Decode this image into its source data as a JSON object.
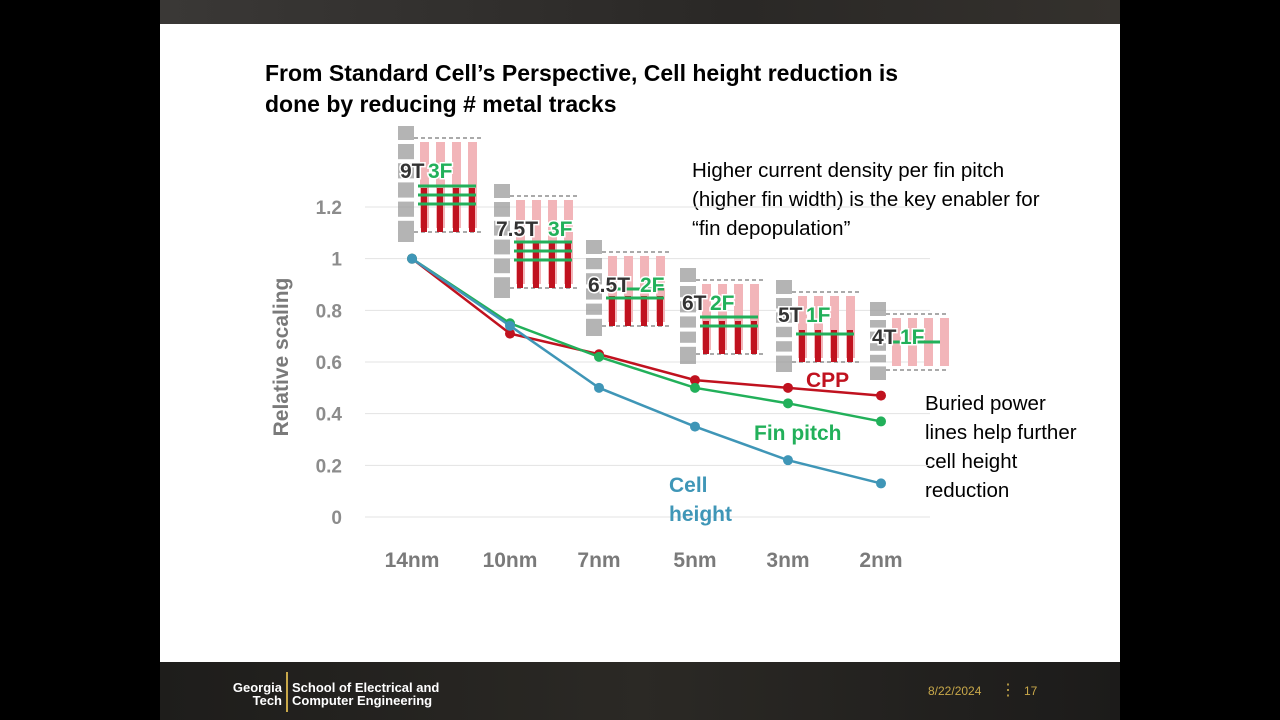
{
  "slide": {
    "title_line1": "From Standard Cell’s Perspective, Cell height reduction is",
    "title_line2": "done by reducing # metal tracks",
    "note_fin_line1": "Higher current density per fin pitch",
    "note_fin_line2": "(higher fin width) is the key enabler for",
    "note_fin_line3": "“fin depopulation”",
    "note_bpr_line1": "Buried power",
    "note_bpr_line2": "lines help further",
    "note_bpr_line3": "cell height",
    "note_bpr_line4": "reduction",
    "footer": {
      "logo_line1": "Georgia",
      "logo_line2": "Tech",
      "school_line1": "School of Electrical and",
      "school_line2": "Computer Engineering",
      "date": "8/22/2024",
      "page": "17"
    }
  },
  "chart_data": {
    "type": "line",
    "ylabel": "Relative scaling",
    "ylim": [
      0,
      1.2
    ],
    "yticks": [
      "0",
      "0.2",
      "0.4",
      "0.6",
      "0.8",
      "1",
      "1.2"
    ],
    "categories": [
      "14nm",
      "10nm",
      "7nm",
      "5nm",
      "3nm",
      "2nm"
    ],
    "series": [
      {
        "name": "CPP",
        "color": "#c0121f",
        "values": [
          1.0,
          0.71,
          0.63,
          0.53,
          0.5,
          0.47
        ]
      },
      {
        "name": "Fin pitch",
        "color": "#22b05a",
        "values": [
          1.0,
          0.75,
          0.62,
          0.5,
          0.44,
          0.37
        ]
      },
      {
        "name": "Cell height",
        "label_line1": "Cell",
        "label_line2": "height",
        "color": "#3f96b7",
        "values": [
          1.0,
          0.74,
          0.5,
          0.35,
          0.22,
          0.13
        ]
      }
    ],
    "cells": [
      {
        "tracks": "9T",
        "fins": "3F"
      },
      {
        "tracks": "7.5T",
        "fins": "3F"
      },
      {
        "tracks": "6.5T",
        "fins": "2F"
      },
      {
        "tracks": "6T",
        "fins": "2F"
      },
      {
        "tracks": "5T",
        "fins": "1F"
      },
      {
        "tracks": "4T",
        "fins": "1F"
      }
    ]
  }
}
